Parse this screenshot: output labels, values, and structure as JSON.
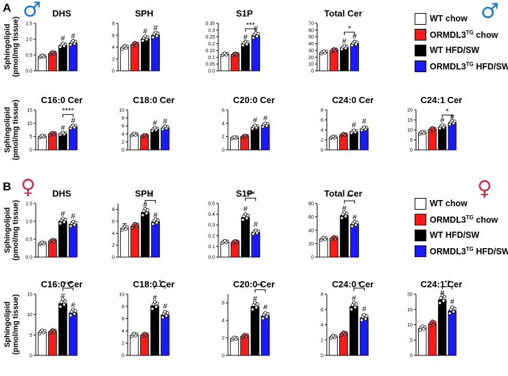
{
  "panel_labels": {
    "a": "A",
    "b": "B"
  },
  "sex_symbols": {
    "male": "♂",
    "female": "♀"
  },
  "colors": {
    "wt_chow": "#ffffff",
    "ormdl3_chow": "#ff1a1a",
    "wt_hfd": "#000000",
    "ormdl3_hfd": "#1a1aff",
    "male_symbol": "#1f77c8",
    "female_symbol": "#c8324a"
  },
  "legend": {
    "items": [
      {
        "label": "WT chow",
        "label_parts": [
          "WT chow",
          "",
          ""
        ],
        "color": "#ffffff"
      },
      {
        "label": "ORMDL3TG chow",
        "label_parts": [
          "ORMDL3",
          "TG",
          " chow"
        ],
        "color": "#ff1a1a"
      },
      {
        "label": "WT HFD/SW",
        "label_parts": [
          "WT HFD/SW",
          "",
          ""
        ],
        "color": "#000000"
      },
      {
        "label": "ORMDL3TG HFD/SW",
        "label_parts": [
          "ORMDL3",
          "TG",
          " HFD/SW"
        ],
        "color": "#1a1aff"
      }
    ]
  },
  "y_axis_label": [
    "Sphingolipid",
    "(pmol/mg tissue)"
  ],
  "chart_data": [
    {
      "type": "bar",
      "section": "A",
      "sex": "male",
      "title": "DHS",
      "categories": [
        "WT chow",
        "ORMDL3TG chow",
        "WT HFD/SW",
        "ORMDL3TG HFD/SW"
      ],
      "values": [
        0.45,
        0.55,
        0.8,
        0.88
      ],
      "errors": [
        0.04,
        0.06,
        0.06,
        0.05
      ],
      "ylim": [
        0,
        1.5
      ],
      "ticks": [
        0.0,
        0.5,
        1.0,
        1.5
      ],
      "tick_labels": [
        "0.0",
        "0.5",
        "1.0",
        "1.5"
      ],
      "marks": [
        "",
        "",
        "#",
        "#"
      ],
      "brackets": []
    },
    {
      "type": "bar",
      "section": "A",
      "sex": "male",
      "title": "SPH",
      "categories": [
        "WT chow",
        "ORMDL3TG chow",
        "WT HFD/SW",
        "ORMDL3TG HFD/SW"
      ],
      "values": [
        3.9,
        4.4,
        5.4,
        6.0
      ],
      "errors": [
        0.15,
        0.4,
        0.4,
        0.35
      ],
      "ylim": [
        0,
        8
      ],
      "ticks": [
        0,
        2,
        4,
        6,
        8
      ],
      "tick_labels": [
        "0",
        "2",
        "4",
        "6",
        "8"
      ],
      "marks": [
        "",
        "",
        "#",
        "#"
      ],
      "brackets": []
    },
    {
      "type": "bar",
      "section": "A",
      "sex": "male",
      "title": "S1P",
      "categories": [
        "WT chow",
        "ORMDL3TG chow",
        "WT HFD/SW",
        "ORMDL3TG HFD/SW"
      ],
      "values": [
        0.12,
        0.12,
        0.2,
        0.26
      ],
      "errors": [
        0.01,
        0.01,
        0.01,
        0.015
      ],
      "ylim": [
        0,
        0.35
      ],
      "ticks": [
        0.0,
        0.05,
        0.1,
        0.15,
        0.2,
        0.25,
        0.3,
        0.35
      ],
      "tick_labels": [
        "0.0",
        "0.05",
        "0.1",
        "0.15",
        "0.2",
        "0.25",
        "0.3",
        "0.35"
      ],
      "marks": [
        "",
        "",
        "#",
        "#"
      ],
      "brackets": [
        {
          "from": 2,
          "to": 3,
          "label": "***",
          "y": 0.31
        }
      ]
    },
    {
      "type": "bar",
      "section": "A",
      "sex": "male",
      "title": "Total  Cer",
      "categories": [
        "WT chow",
        "ORMDL3TG chow",
        "WT HFD/SW",
        "ORMDL3TG HFD/SW"
      ],
      "values": [
        27,
        30,
        34,
        40
      ],
      "errors": [
        1.5,
        1.5,
        2,
        3
      ],
      "ylim": [
        0,
        70
      ],
      "ticks": [
        0,
        10,
        20,
        30,
        40,
        50,
        60,
        70
      ],
      "tick_labels": [
        "0",
        "10",
        "20",
        "30",
        "40",
        "50",
        "60",
        "70"
      ],
      "marks": [
        "",
        "",
        "#",
        "#"
      ],
      "brackets": [
        {
          "from": 2,
          "to": 3,
          "label": "*",
          "y": 57
        }
      ]
    },
    {
      "type": "bar",
      "section": "A",
      "sex": "male",
      "title": "C16:0 Cer",
      "categories": [
        "WT chow",
        "ORMDL3TG chow",
        "WT HFD/SW",
        "ORMDL3TG HFD/SW"
      ],
      "values": [
        5.0,
        6.0,
        6.0,
        8.6
      ],
      "errors": [
        0.2,
        0.4,
        0.3,
        0.5
      ],
      "ylim": [
        0,
        15
      ],
      "ticks": [
        0,
        5,
        10,
        15
      ],
      "tick_labels": [
        "0",
        "5",
        "10",
        "15"
      ],
      "marks": [
        "",
        "",
        "#",
        "#"
      ],
      "brackets": [
        {
          "from": 2,
          "to": 3,
          "label": "****",
          "y": 13.3
        }
      ]
    },
    {
      "type": "bar",
      "section": "A",
      "sex": "male",
      "title": "C18:0 Cer",
      "categories": [
        "WT chow",
        "ORMDL3TG chow",
        "WT HFD/SW",
        "ORMDL3TG HFD/SW"
      ],
      "values": [
        3.8,
        3.5,
        5.1,
        5.5
      ],
      "errors": [
        0.2,
        0.2,
        0.3,
        0.4
      ],
      "ylim": [
        0,
        10
      ],
      "ticks": [
        0,
        2,
        4,
        6,
        8,
        10
      ],
      "tick_labels": [
        "0",
        "2",
        "4",
        "6",
        "8",
        "10"
      ],
      "marks": [
        "",
        "",
        "#",
        "#"
      ],
      "brackets": []
    },
    {
      "type": "bar",
      "section": "A",
      "sex": "male",
      "title": "C20:0 Cer",
      "categories": [
        "WT chow",
        "ORMDL3TG chow",
        "WT HFD/SW",
        "ORMDL3TG HFD/SW"
      ],
      "values": [
        1.8,
        2.0,
        3.4,
        3.7
      ],
      "errors": [
        0.15,
        0.15,
        0.25,
        0.3
      ],
      "ylim": [
        0,
        6
      ],
      "ticks": [
        0,
        2,
        4,
        6
      ],
      "tick_labels": [
        "0",
        "2",
        "4",
        "6"
      ],
      "marks": [
        "",
        "",
        "#",
        "#"
      ],
      "brackets": []
    },
    {
      "type": "bar",
      "section": "A",
      "sex": "male",
      "title": "C24:0 Cer",
      "categories": [
        "WT chow",
        "ORMDL3TG chow",
        "WT HFD/SW",
        "ORMDL3TG HFD/SW"
      ],
      "values": [
        2.5,
        3.0,
        3.6,
        4.2
      ],
      "errors": [
        0.2,
        0.3,
        0.3,
        0.5
      ],
      "ylim": [
        0,
        8
      ],
      "ticks": [
        0,
        2,
        4,
        6,
        8
      ],
      "tick_labels": [
        "0",
        "2",
        "4",
        "6",
        "8"
      ],
      "marks": [
        "",
        "",
        "#",
        "#"
      ],
      "brackets": []
    },
    {
      "type": "bar",
      "section": "A",
      "sex": "male",
      "title": "C24:1 Cer",
      "categories": [
        "WT chow",
        "ORMDL3TG chow",
        "WT HFD/SW",
        "ORMDL3TG HFD/SW"
      ],
      "values": [
        8.5,
        10.2,
        11.5,
        13.6
      ],
      "errors": [
        0.7,
        0.5,
        0.8,
        0.3
      ],
      "ylim": [
        0,
        20
      ],
      "ticks": [
        0,
        5,
        10,
        15,
        20
      ],
      "tick_labels": [
        "0",
        "5",
        "10",
        "15",
        "20"
      ],
      "marks": [
        "",
        "",
        "#",
        "#"
      ],
      "brackets": [
        {
          "from": 2,
          "to": 3,
          "label": "*",
          "y": 17.5
        }
      ]
    },
    {
      "type": "bar",
      "section": "B",
      "sex": "female",
      "title": "DHS",
      "categories": [
        "WT chow",
        "ORMDL3TG chow",
        "WT HFD/SW",
        "ORMDL3TG HFD/SW"
      ],
      "values": [
        0.38,
        0.45,
        1.0,
        0.92
      ],
      "errors": [
        0.03,
        0.05,
        0.07,
        0.08
      ],
      "ylim": [
        0,
        1.5
      ],
      "ticks": [
        0.0,
        0.5,
        1.0,
        1.5
      ],
      "tick_labels": [
        "0.0",
        "0.5",
        "1.0",
        "1.5"
      ],
      "marks": [
        "",
        "",
        "#",
        "#"
      ],
      "brackets": []
    },
    {
      "type": "bar",
      "section": "B",
      "sex": "female",
      "title": "SPH",
      "categories": [
        "WT chow",
        "ORMDL3TG chow",
        "WT HFD/SW",
        "ORMDL3TG HFD/SW"
      ],
      "values": [
        4.8,
        5.2,
        7.5,
        5.9
      ],
      "errors": [
        0.8,
        0.4,
        0.4,
        0.3
      ],
      "ylim": [
        0,
        9
      ],
      "ticks": [
        0,
        2,
        4,
        6,
        8
      ],
      "tick_labels": [
        "0",
        "2",
        "4",
        "6",
        "8"
      ],
      "marks": [
        "",
        "",
        "#",
        "#"
      ],
      "brackets": [
        {
          "from": 2,
          "to": 3,
          "label": "*",
          "y": 9.5
        }
      ]
    },
    {
      "type": "bar",
      "section": "B",
      "sex": "female",
      "title": "S1P",
      "categories": [
        "WT chow",
        "ORMDL3TG chow",
        "WT HFD/SW",
        "ORMDL3TG HFD/SW"
      ],
      "values": [
        0.14,
        0.14,
        0.37,
        0.23
      ],
      "errors": [
        0.02,
        0.015,
        0.03,
        0.025
      ],
      "ylim": [
        0,
        0.5
      ],
      "ticks": [
        0.0,
        0.1,
        0.2,
        0.3,
        0.4,
        0.5
      ],
      "tick_labels": [
        "0.0",
        "0.1",
        "0.2",
        "0.3",
        "0.4",
        "0.5"
      ],
      "marks": [
        "",
        "",
        "#",
        "#"
      ],
      "brackets": [
        {
          "from": 2,
          "to": 3,
          "label": "***",
          "y": 0.55
        }
      ]
    },
    {
      "type": "bar",
      "section": "B",
      "sex": "female",
      "title": "Total  Cer",
      "categories": [
        "WT chow",
        "ORMDL3TG chow",
        "WT HFD/SW",
        "ORMDL3TG HFD/SW"
      ],
      "values": [
        27,
        28,
        62,
        49
      ],
      "errors": [
        1,
        1.5,
        3,
        3
      ],
      "ylim": [
        0,
        80
      ],
      "ticks": [
        0,
        20,
        40,
        60,
        80
      ],
      "tick_labels": [
        "0",
        "20",
        "40",
        "60",
        "80"
      ],
      "marks": [
        "",
        "",
        "#",
        "#"
      ],
      "brackets": [
        {
          "from": 2,
          "to": 3,
          "label": "**",
          "y": 84
        }
      ]
    },
    {
      "type": "bar",
      "section": "B",
      "sex": "female",
      "title": "C16:0 Cer",
      "categories": [
        "WT chow",
        "ORMDL3TG chow",
        "WT HFD/SW",
        "ORMDL3TG HFD/SW"
      ],
      "values": [
        5.7,
        5.8,
        12.7,
        10.4
      ],
      "errors": [
        0.3,
        0.3,
        0.6,
        0.6
      ],
      "ylim": [
        0,
        15
      ],
      "ticks": [
        0,
        5,
        10,
        15
      ],
      "tick_labels": [
        "0",
        "5",
        "10",
        "15"
      ],
      "marks": [
        "",
        "",
        "#",
        "#"
      ],
      "brackets": [
        {
          "from": 2,
          "to": 3,
          "label": "***",
          "y": 16.5
        }
      ]
    },
    {
      "type": "bar",
      "section": "B",
      "sex": "female",
      "title": "C18:0 Cer",
      "categories": [
        "WT chow",
        "ORMDL3TG chow",
        "WT HFD/SW",
        "ORMDL3TG HFD/SW"
      ],
      "values": [
        3.3,
        3.3,
        8.1,
        6.6
      ],
      "errors": [
        0.2,
        0.2,
        0.5,
        0.6
      ],
      "ylim": [
        0,
        10
      ],
      "ticks": [
        0,
        2,
        4,
        6,
        8,
        10
      ],
      "tick_labels": [
        "0",
        "2",
        "4",
        "6",
        "8",
        "10"
      ],
      "marks": [
        "",
        "",
        "#",
        "#"
      ],
      "brackets": [
        {
          "from": 2,
          "to": 3,
          "label": "*",
          "y": 11.3
        }
      ]
    },
    {
      "type": "bar",
      "section": "B",
      "sex": "female",
      "title": "C20:0 Cer",
      "categories": [
        "WT chow",
        "ORMDL3TG chow",
        "WT HFD/SW",
        "ORMDL3TG HFD/SW"
      ],
      "values": [
        1.9,
        2.2,
        5.6,
        4.5
      ],
      "errors": [
        0.1,
        0.15,
        0.3,
        0.4
      ],
      "ylim": [
        0,
        7
      ],
      "ticks": [
        0,
        2,
        4,
        6
      ],
      "tick_labels": [
        "0",
        "2",
        "4",
        "6"
      ],
      "marks": [
        "",
        "",
        "#",
        "#"
      ],
      "brackets": [
        {
          "from": 2,
          "to": 3,
          "label": "**",
          "y": 7.5
        }
      ]
    },
    {
      "type": "bar",
      "section": "B",
      "sex": "female",
      "title": "C24:0 Cer",
      "categories": [
        "WT chow",
        "ORMDL3TG chow",
        "WT HFD/SW",
        "ORMDL3TG HFD/SW"
      ],
      "values": [
        2.4,
        2.8,
        6.4,
        4.9
      ],
      "errors": [
        0.2,
        0.2,
        0.4,
        0.5
      ],
      "ylim": [
        0,
        8
      ],
      "ticks": [
        0,
        2,
        4,
        6,
        8
      ],
      "tick_labels": [
        "0",
        "2",
        "4",
        "6",
        "8"
      ],
      "marks": [
        "",
        "",
        "#",
        "#"
      ],
      "brackets": [
        {
          "from": 2,
          "to": 3,
          "label": "*",
          "y": 8.8
        }
      ]
    },
    {
      "type": "bar",
      "section": "B",
      "sex": "female",
      "title": "C24:1 Cer",
      "categories": [
        "WT chow",
        "ORMDL3TG chow",
        "WT HFD/SW",
        "ORMDL3TG HFD/SW"
      ],
      "values": [
        8.8,
        10.3,
        18.2,
        14.6
      ],
      "errors": [
        0.3,
        0.8,
        0.6,
        1.2
      ],
      "ylim": [
        0,
        20
      ],
      "ticks": [
        0,
        5,
        10,
        15,
        20
      ],
      "tick_labels": [
        "0",
        "5",
        "10",
        "15",
        "20"
      ],
      "marks": [
        "",
        "",
        "#",
        "#"
      ],
      "brackets": [
        {
          "from": 2,
          "to": 3,
          "label": "**",
          "y": 22.5
        }
      ]
    }
  ]
}
